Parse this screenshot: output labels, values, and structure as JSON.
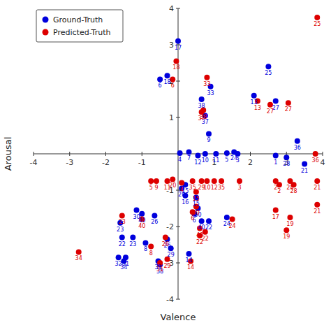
{
  "chart_data": {
    "type": "scatter",
    "xlabel": "Valence",
    "ylabel": "Arousal",
    "xlim": [
      -4,
      4
    ],
    "ylim": [
      -4,
      4
    ],
    "xticks": [
      -4,
      -3,
      -2,
      -1,
      1,
      2,
      3,
      4
    ],
    "yticks": [
      -4,
      -3,
      -2,
      -1,
      1,
      2,
      3,
      4
    ],
    "grid": false,
    "legend": "upper left",
    "series": [
      {
        "name": "Ground-Truth",
        "color": "#0000dd",
        "marker": "circle",
        "x": [
          0.0,
          -0.5,
          -0.3,
          2.5,
          0.9,
          2.1,
          2.7,
          0.65,
          0.75,
          0.85,
          0.05,
          0.3,
          0.55,
          0.75,
          1.05,
          1.35,
          1.65,
          1.55,
          2.7,
          3.0,
          3.3,
          3.5,
          0.2,
          0.1,
          0.2,
          0.5,
          0.55,
          0.45,
          0.65,
          0.85,
          1.35,
          -1.15,
          -1.0,
          -0.65,
          -1.6,
          -1.55,
          -1.25,
          -0.9,
          -0.3,
          -0.2,
          0.3,
          -1.65,
          -1.45,
          -1.5,
          -0.55,
          -0.5
        ],
        "values": [
          3.1,
          2.05,
          2.15,
          2.4,
          1.85,
          1.6,
          1.45,
          1.5,
          1.05,
          0.55,
          0.02,
          0.05,
          -0.05,
          0.0,
          0.0,
          0.02,
          0.0,
          0.05,
          -0.05,
          -0.1,
          0.35,
          -0.28,
          -0.85,
          -0.95,
          -1.15,
          -1.2,
          -1.5,
          -1.65,
          -1.85,
          -1.85,
          -1.75,
          -1.55,
          -1.65,
          -1.7,
          -1.9,
          -2.3,
          -2.3,
          -2.45,
          -2.35,
          -2.6,
          -2.75,
          -2.85,
          -2.85,
          -2.95,
          -2.95,
          -3.05
        ],
        "labels": [
          "17",
          "6",
          "18",
          "25",
          "33",
          "13",
          "27",
          "38",
          "37",
          "9",
          "4",
          "7",
          "12",
          "10",
          "11",
          "5",
          "3",
          "24",
          "1",
          "28",
          "36",
          "21",
          "15",
          "20",
          "16",
          "15",
          "30",
          "6",
          "40",
          "22",
          "24",
          "30",
          "40",
          "26",
          "23",
          "22",
          "23",
          "8",
          "26",
          "29",
          "14",
          "32",
          "31",
          "34",
          "31",
          "38"
        ]
      },
      {
        "name": "Predicted-Truth",
        "color": "#dd0000",
        "marker": "circle",
        "x": [
          3.85,
          -0.05,
          -0.15,
          0.8,
          2.2,
          2.55,
          3.05,
          0.7,
          0.65,
          -0.75,
          -0.6,
          -0.3,
          -0.15,
          0.1,
          0.4,
          0.65,
          0.8,
          1.0,
          1.2,
          1.7,
          2.7,
          3.1,
          3.8,
          3.85,
          0.5,
          0.4,
          0.5,
          0.6,
          0.75,
          0.6,
          1.5,
          2.7,
          3.1,
          3.0,
          3.85,
          2.8,
          3.2,
          -1.55,
          -1.0,
          -0.35,
          -2.75,
          0.35,
          -0.3,
          -0.5,
          -0.75
        ],
        "values": [
          3.75,
          2.55,
          2.05,
          2.1,
          1.45,
          1.35,
          1.4,
          1.2,
          1.15,
          -0.75,
          -0.75,
          -0.75,
          -0.7,
          -0.8,
          -0.75,
          -0.75,
          -0.75,
          -0.75,
          -0.75,
          -0.75,
          -0.75,
          -0.75,
          0.0,
          -0.75,
          -1.45,
          -1.6,
          -1.05,
          -2.05,
          -2.15,
          -2.25,
          -1.8,
          -1.55,
          -1.75,
          -2.1,
          -1.4,
          -0.85,
          -0.85,
          -1.7,
          -1.8,
          -2.3,
          -2.7,
          -2.95,
          -2.9,
          -3.0,
          -2.55
        ],
        "labels": [
          "25",
          "18",
          "6",
          "33",
          "13",
          "27",
          "27",
          "38",
          "37",
          "5",
          "9",
          "11",
          "20",
          "4",
          "35",
          "29",
          "10",
          "12",
          "35",
          "3",
          "2",
          "28",
          "36",
          "21",
          "30",
          "6",
          "15",
          "40",
          "22",
          "22",
          "24",
          "17",
          "19",
          "19",
          "21",
          "2",
          "28",
          "23",
          "40",
          "26",
          "34",
          "14",
          "29",
          "31",
          "8"
        ]
      }
    ]
  }
}
